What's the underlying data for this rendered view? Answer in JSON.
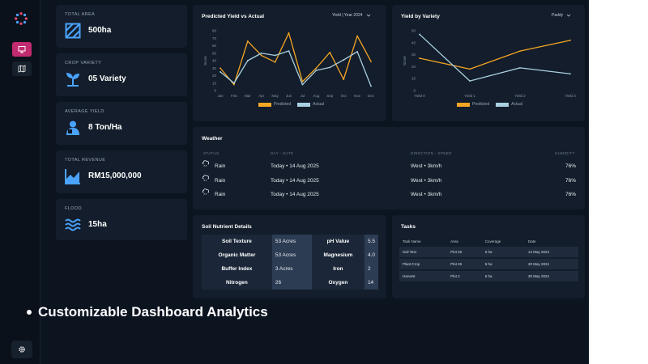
{
  "stats": [
    {
      "label": "TOTAL AREA",
      "value": "500ha",
      "icon": "hatched-square-icon"
    },
    {
      "label": "CROP VARIETY",
      "value": "05 Variety",
      "icon": "sprout-icon"
    },
    {
      "label": "AVERAGE YIELD",
      "value": "8 Ton/Ha",
      "icon": "farmer-icon"
    },
    {
      "label": "TOTAL REVENUE",
      "value": "RM15,000,000",
      "icon": "trend-chart-icon"
    },
    {
      "label": "FLOOD",
      "value": "15ha",
      "icon": "waves-icon"
    }
  ],
  "predicted_chart": {
    "title": "Predicted Yield vs Actual",
    "dropdown": "Yield | Year 2024",
    "legend_predicted": "Predicted",
    "legend_actual": "Actual"
  },
  "variety_chart": {
    "title": "Yield by Variety",
    "dropdown": "Paddy",
    "legend_predicted": "Predicted",
    "legend_actual": "Actual"
  },
  "weather": {
    "title": "Weather",
    "headers": {
      "status": "STATUS",
      "date": "DAY - DATE",
      "direction": "DIRECTION - SPEED",
      "humidity": "HUMIDITY"
    },
    "rows": [
      {
        "status": "Rain",
        "date": "Today • 14 Aug 2025",
        "direction": "West • 3km/h",
        "humidity": "76%"
      },
      {
        "status": "Rain",
        "date": "Today • 14 Aug 2025",
        "direction": "West • 3km/h",
        "humidity": "76%"
      },
      {
        "status": "Rain",
        "date": "Today • 14 Aug 2025",
        "direction": "West • 3km/h",
        "humidity": "76%"
      }
    ]
  },
  "soil": {
    "title": "Soil Nutrient Details",
    "rows": [
      {
        "label1": "Soil Texture",
        "val1": "53 Acres",
        "label2": "pH Value",
        "val2": "5.5"
      },
      {
        "label1": "Organic Matter",
        "val1": "53 Acres",
        "label2": "Magnesium",
        "val2": "4.0"
      },
      {
        "label1": "Buffer Index",
        "val1": "3 Acres",
        "label2": "Iron",
        "val2": "2"
      },
      {
        "label1": "Nitrogen",
        "val1": "26",
        "label2": "Oxygen",
        "val2": "14"
      }
    ]
  },
  "tasks": {
    "title": "Tasks",
    "headers": {
      "name": "Task Name",
      "area": "Area",
      "coverage": "Coverage",
      "date": "Date"
    },
    "rows": [
      {
        "name": "Soil Test",
        "area": "Plot 26",
        "coverage": "5 ha",
        "date": "14 May 2024"
      },
      {
        "name": "Plant Crop",
        "area": "Plot 26",
        "coverage": "5 ha",
        "date": "20 May 2024"
      },
      {
        "name": "Harvest",
        "area": "Plot 2",
        "coverage": "5 ha",
        "date": "30 May 2024"
      }
    ]
  },
  "caption": "Customizable Dashboard Analytics",
  "colors": {
    "predicted": "#f5a623",
    "actual": "#a9d0e0",
    "accent": "#c12b6f"
  },
  "chart_data": [
    {
      "type": "line",
      "title": "Predicted Yield vs Actual",
      "categories": [
        "Jan",
        "Feb",
        "Mar",
        "Apr",
        "May",
        "Jun",
        "Jul",
        "Aug",
        "Sep",
        "Oct",
        "Nov",
        "Dec"
      ],
      "series": [
        {
          "name": "Predicted",
          "values": [
            30,
            8,
            66,
            47,
            38,
            77,
            12,
            30,
            51,
            15,
            73,
            39
          ]
        },
        {
          "name": "Actual",
          "values": [
            25,
            10,
            40,
            50,
            47,
            53,
            8,
            27,
            31,
            41,
            52,
            6
          ]
        }
      ],
      "ylabel": "Score",
      "yticks": [
        0,
        10,
        20,
        30,
        40,
        50,
        60,
        70,
        80
      ],
      "ylim": [
        0,
        80
      ]
    },
    {
      "type": "line",
      "title": "Yield by Variety",
      "categories": [
        "Yield 0",
        "Yield 1",
        "Yield 2",
        "Yield 3"
      ],
      "series": [
        {
          "name": "Predicted",
          "values": [
            27,
            18,
            33,
            42
          ]
        },
        {
          "name": "Actual",
          "values": [
            47,
            8,
            19,
            14
          ]
        }
      ],
      "ylabel": "Score",
      "yticks": [
        0,
        10,
        20,
        30,
        40,
        50
      ],
      "ylim": [
        0,
        50
      ]
    }
  ]
}
